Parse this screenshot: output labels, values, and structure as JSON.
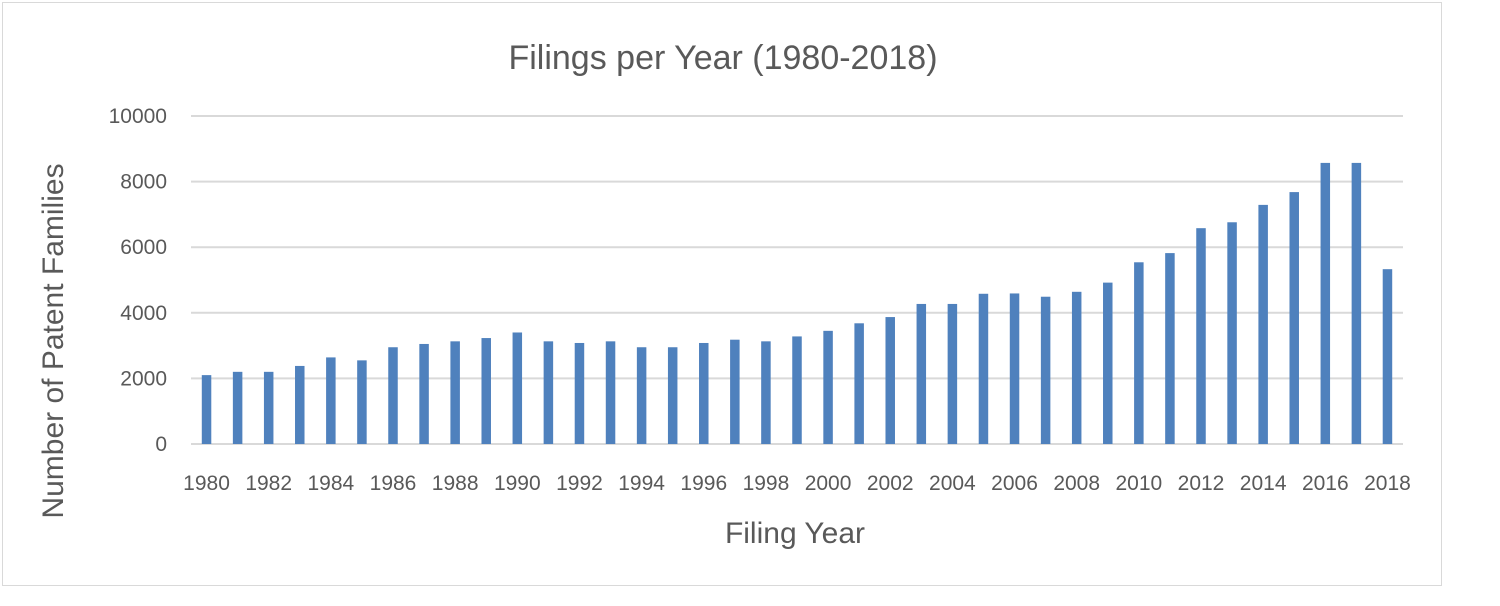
{
  "chart_data": {
    "type": "bar",
    "title": "Filings per Year (1980-2018)",
    "xlabel": "Filing Year",
    "ylabel": "Number of Patent Families",
    "ylim": [
      0,
      10000
    ],
    "yticks": [
      0,
      2000,
      4000,
      6000,
      8000,
      10000
    ],
    "grid": true,
    "legend": "none",
    "bar_color": "#4f81bd",
    "categories": [
      "1980",
      "1981",
      "1982",
      "1983",
      "1984",
      "1985",
      "1986",
      "1987",
      "1988",
      "1989",
      "1990",
      "1991",
      "1992",
      "1993",
      "1994",
      "1995",
      "1996",
      "1997",
      "1998",
      "1999",
      "2000",
      "2001",
      "2002",
      "2003",
      "2004",
      "2005",
      "2006",
      "2007",
      "2008",
      "2009",
      "2010",
      "2011",
      "2012",
      "2013",
      "2014",
      "2015",
      "2016",
      "2017",
      "2018"
    ],
    "xtick_labels": [
      "1980",
      "1982",
      "1984",
      "1986",
      "1988",
      "1990",
      "1992",
      "1994",
      "1996",
      "1998",
      "2000",
      "2002",
      "2004",
      "2006",
      "2008",
      "2010",
      "2012",
      "2014",
      "2016",
      "2018"
    ],
    "values": [
      2100,
      2200,
      2200,
      2380,
      2640,
      2550,
      2950,
      3050,
      3130,
      3230,
      3400,
      3130,
      3080,
      3130,
      2950,
      2950,
      3080,
      3180,
      3130,
      3280,
      3450,
      3680,
      3870,
      4270,
      4270,
      4580,
      4590,
      4490,
      4640,
      4920,
      5540,
      5820,
      6580,
      6760,
      7290,
      7680,
      8570,
      8570,
      5330
    ]
  }
}
